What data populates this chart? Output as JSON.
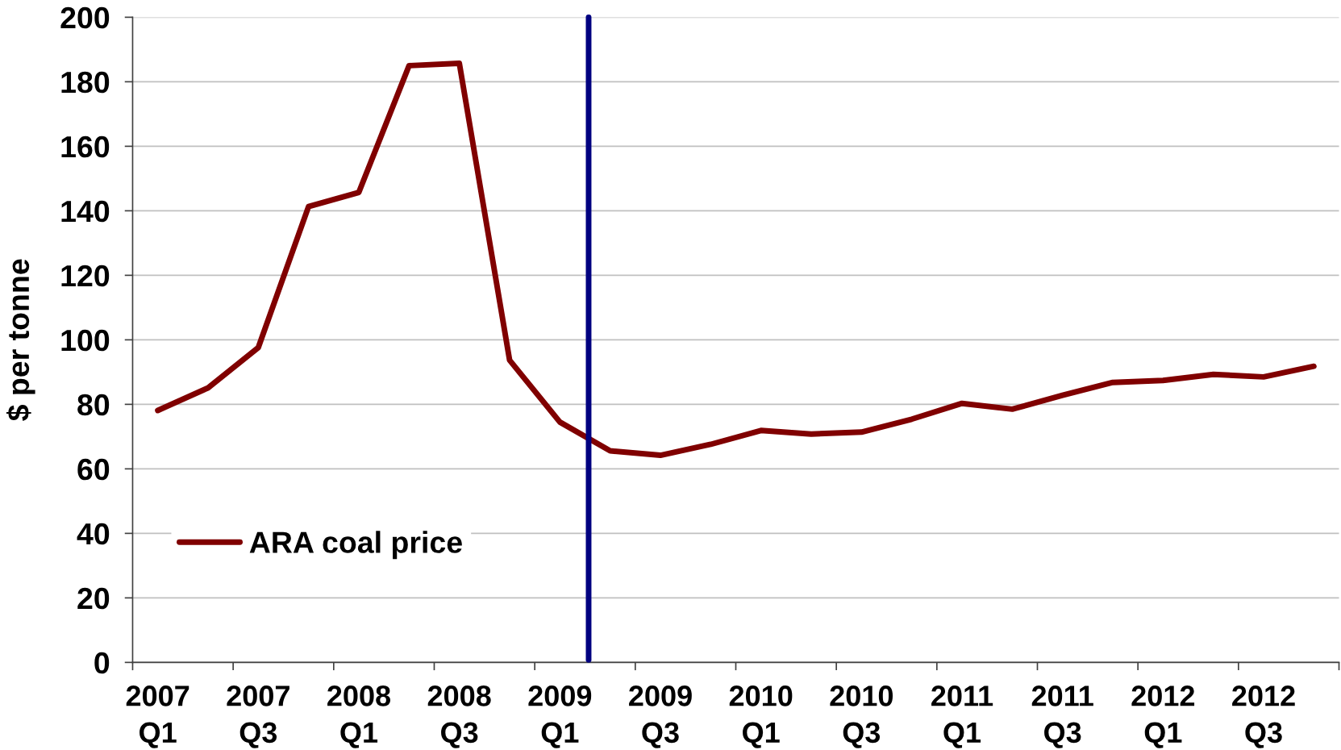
{
  "chart_data": {
    "type": "line",
    "ylabel": "$ per tonne",
    "categories": [
      "2007\nQ1",
      null,
      "2007\nQ3",
      null,
      "2008\nQ1",
      null,
      "2008\nQ3",
      null,
      "2009\nQ1",
      null,
      "2009\nQ3",
      null,
      "2010\nQ1",
      null,
      "2010\nQ3",
      null,
      "2011\nQ1",
      null,
      "2011\nQ3",
      null,
      "2012\nQ1",
      null,
      "2012\nQ3",
      null
    ],
    "series": [
      {
        "name": "ARA coal price",
        "color": "#800000",
        "values": [
          78.1,
          85.1,
          97.6,
          141.3,
          145.7,
          185.0,
          185.7,
          93.7,
          74.5,
          65.6,
          64.2,
          67.6,
          71.9,
          70.8,
          71.4,
          75.4,
          80.3,
          78.5,
          82.8,
          86.8,
          87.4,
          89.3,
          88.5,
          91.8
        ]
      }
    ],
    "ylim": [
      0,
      200
    ],
    "yticks": [
      0,
      20,
      40,
      60,
      80,
      100,
      120,
      140,
      160,
      180,
      200
    ],
    "grid": "y",
    "legend": "bottom left",
    "line_style": "solid"
  }
}
